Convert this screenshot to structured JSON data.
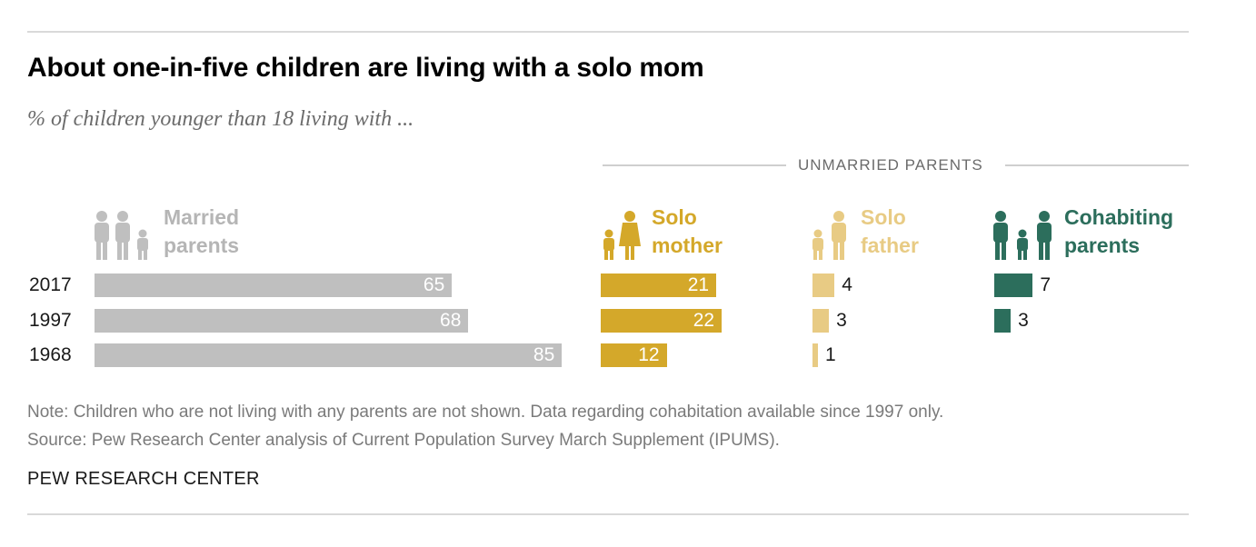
{
  "title": "About one-in-five children are living with a solo mom",
  "subtitle": "% of children younger than 18 living with ...",
  "group_label": "UNMARRIED PARENTS",
  "note": "Note: Children who are not living with any parents are not shown. Data regarding cohabitation available since 1997 only.",
  "source": "Source: Pew Research Center analysis of Current Population Survey March Supplement (IPUMS).",
  "brand": "PEW RESEARCH CENTER",
  "colors": {
    "married": "#bfbfbf",
    "solo_mother": "#d4a82a",
    "solo_father": "#e8cb84",
    "cohabiting": "#2c6e5c"
  },
  "icons": {
    "married": "family-icon",
    "solo_mother": "mother-child-icon",
    "solo_father": "father-child-icon",
    "cohabiting": "cohabiting-family-icon"
  },
  "chart_data": {
    "type": "bar",
    "title": "About one-in-five children are living with a solo mom",
    "subtitle": "% of children younger than 18 living with ...",
    "categories": [
      "2017",
      "1997",
      "1968"
    ],
    "series": [
      {
        "name": "Married parents",
        "line1": "Married",
        "line2": "parents",
        "values": [
          65,
          68,
          85
        ]
      },
      {
        "name": "Solo mother",
        "line1": "Solo",
        "line2": "mother",
        "values": [
          21,
          22,
          12
        ]
      },
      {
        "name": "Solo father",
        "line1": "Solo",
        "line2": "father",
        "values": [
          4,
          3,
          1
        ]
      },
      {
        "name": "Cohabiting parents",
        "line1": "Cohabiting",
        "line2": "parents",
        "values": [
          7,
          3,
          null
        ]
      }
    ]
  }
}
